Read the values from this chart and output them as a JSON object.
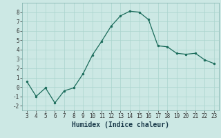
{
  "x": [
    3,
    4,
    5,
    6,
    7,
    8,
    9,
    10,
    11,
    12,
    13,
    14,
    15,
    16,
    17,
    18,
    19,
    20,
    21,
    22,
    23
  ],
  "y": [
    0.6,
    -1.0,
    -0.1,
    -1.7,
    -0.4,
    -0.1,
    1.4,
    3.4,
    4.9,
    6.5,
    7.6,
    8.1,
    8.0,
    7.2,
    4.4,
    4.3,
    3.6,
    3.5,
    3.6,
    2.9,
    2.5
  ],
  "line_color": "#1a6b5a",
  "marker_color": "#1a6b5a",
  "bg_color": "#cce8e4",
  "grid_color": "#aad4ce",
  "xlabel": "Humidex (Indice chaleur)",
  "xlim": [
    2.5,
    23.5
  ],
  "ylim": [
    -2.5,
    9.0
  ],
  "yticks": [
    -2,
    -1,
    0,
    1,
    2,
    3,
    4,
    5,
    6,
    7,
    8
  ],
  "xticks": [
    3,
    4,
    5,
    6,
    7,
    8,
    9,
    10,
    11,
    12,
    13,
    14,
    15,
    16,
    17,
    18,
    19,
    20,
    21,
    22,
    23
  ],
  "tick_fontsize": 5.5,
  "xlabel_fontsize": 7.0
}
